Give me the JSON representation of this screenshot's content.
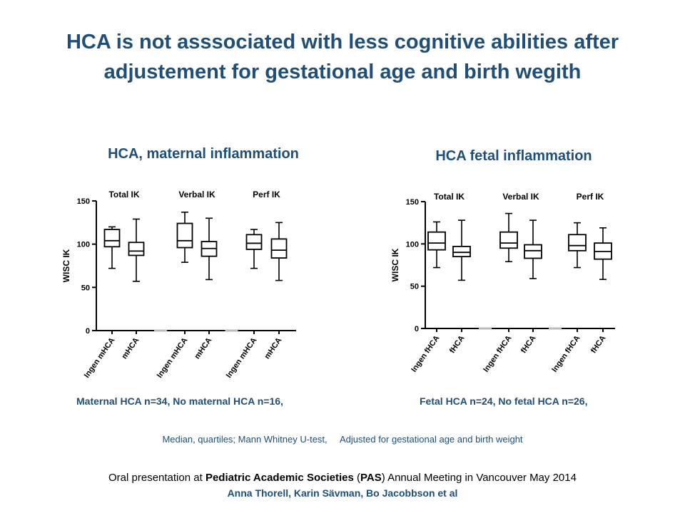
{
  "title": "HCA is not asssociated with less cognitive abilities after adjustement for gestational age and birth wegith",
  "charts": [
    {
      "title": "HCA,  maternal inflammation",
      "note": "Maternal HCA n=34, No  maternal HCA n=16,"
    },
    {
      "title": "HCA fetal inflammation",
      "note": "Fetal HCA n=24, No fetal HCA n=26,"
    }
  ],
  "method_note": "Median, quartiles; Mann Whitney U-test,     Adjusted for gestational age and birth weight",
  "conference": {
    "before": "Oral presentation at ",
    "bold1": "Pediatric Academic Societies",
    "mid": " (",
    "bold2": "PAS",
    "after": ") Annual Meeting in Vancouver May 2014"
  },
  "authors": "Anna Thorell, Karin Sävman, Bo Jacobbson et al",
  "colors": {
    "title": "#1f4e79",
    "axis": "#000000"
  },
  "chart_data": [
    {
      "type": "box",
      "ylabel": "WISC IK",
      "ylim": [
        0,
        150
      ],
      "yticks": [
        0,
        50,
        100,
        150
      ],
      "groups": [
        "Total IK",
        "Verbal IK",
        "Perf IK"
      ],
      "categories": [
        "Ingen mHCA",
        "mHCA",
        "Ingen mHCA",
        "mHCA",
        "Ingen mHCA",
        "mHCA"
      ],
      "boxes": [
        {
          "min": 72,
          "q1": 97,
          "median": 104,
          "q3": 117,
          "max": 120
        },
        {
          "min": 57,
          "q1": 87,
          "median": 92,
          "q3": 102,
          "max": 129
        },
        {
          "min": 79,
          "q1": 96,
          "median": 104,
          "q3": 124,
          "max": 137
        },
        {
          "min": 59,
          "q1": 86,
          "median": 95,
          "q3": 103,
          "max": 130
        },
        {
          "min": 72,
          "q1": 94,
          "median": 101,
          "q3": 111,
          "max": 117
        },
        {
          "min": 58,
          "q1": 84,
          "median": 93,
          "q3": 106,
          "max": 125
        }
      ]
    },
    {
      "type": "box",
      "ylabel": "WISC IK",
      "ylim": [
        0,
        150
      ],
      "yticks": [
        0,
        50,
        100,
        150
      ],
      "groups": [
        "Total IK",
        "Verbal IK",
        "Perf IK"
      ],
      "categories": [
        "Ingen fHCA",
        "fHCA",
        "Ingen fHCA",
        "fHCA",
        "Ingen fHCA",
        "fHCA"
      ],
      "boxes": [
        {
          "min": 72,
          "q1": 93,
          "median": 101,
          "q3": 114,
          "max": 126
        },
        {
          "min": 57,
          "q1": 85,
          "median": 90,
          "q3": 97,
          "max": 128
        },
        {
          "min": 79,
          "q1": 95,
          "median": 101,
          "q3": 114,
          "max": 136
        },
        {
          "min": 59,
          "q1": 83,
          "median": 92,
          "q3": 99,
          "max": 128
        },
        {
          "min": 72,
          "q1": 92,
          "median": 98,
          "q3": 111,
          "max": 125
        },
        {
          "min": 58,
          "q1": 82,
          "median": 91,
          "q3": 101,
          "max": 119
        }
      ]
    }
  ]
}
